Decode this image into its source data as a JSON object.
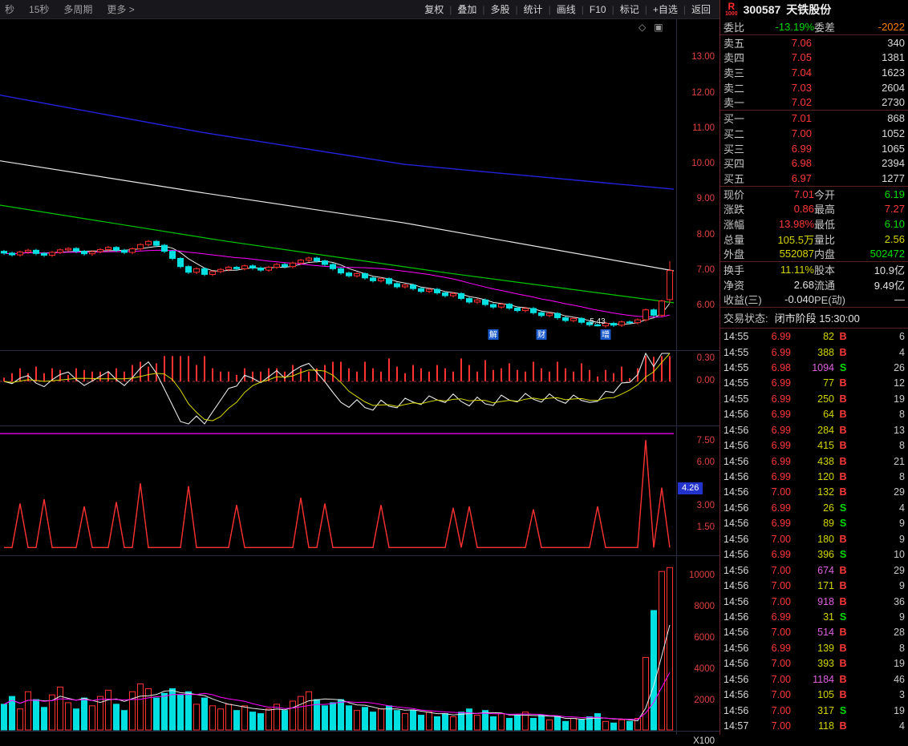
{
  "topbar": {
    "left_items": [
      "秒",
      "15秒",
      "多周期",
      "更多 >"
    ],
    "right_buttons": [
      "复权",
      "叠加",
      "多股",
      "统计",
      "画线",
      "F10",
      "标记",
      "+自选",
      "返回"
    ]
  },
  "stock": {
    "badge": "R",
    "badge_sub": "1000",
    "code": "300587",
    "name": "天铁股份"
  },
  "chart": {
    "closes": [
      7.5,
      7.45,
      7.53,
      7.58,
      7.49,
      7.44,
      7.52,
      7.59,
      7.63,
      7.55,
      7.48,
      7.54,
      7.6,
      7.66,
      7.58,
      7.52,
      7.62,
      7.74,
      7.83,
      7.72,
      7.55,
      7.35,
      7.12,
      6.96,
      7.06,
      6.9,
      6.98,
      7.04,
      7.1,
      7.06,
      7.14,
      7.08,
      7.02,
      7.1,
      7.18,
      7.12,
      7.22,
      7.3,
      7.36,
      7.28,
      7.18,
      7.06,
      6.94,
      6.86,
      6.92,
      6.8,
      6.72,
      6.78,
      6.64,
      6.55,
      6.6,
      6.5,
      6.42,
      6.48,
      6.38,
      6.3,
      6.36,
      6.22,
      6.12,
      6.18,
      6.05,
      5.98,
      6.06,
      5.95,
      5.88,
      5.94,
      5.82,
      5.74,
      5.8,
      5.68,
      5.6,
      5.66,
      5.55,
      5.48,
      5.45,
      5.52,
      5.47,
      5.56,
      5.54,
      5.62,
      5.9,
      5.75,
      6.15,
      7.01
    ],
    "last_bar": {
      "open": 6.19,
      "high": 7.27,
      "low": 6.1,
      "close": 7.01
    },
    "low_marker": {
      "index": 74,
      "text": "5.43"
    },
    "event_markers": [
      {
        "index": 61,
        "label": "解"
      },
      {
        "index": 67,
        "label": "财"
      },
      {
        "index": 75,
        "label": "增"
      }
    ],
    "long_lines": {
      "blue": [
        [
          0,
          11.95
        ],
        [
          0.3,
          10.9
        ],
        [
          0.6,
          10.0
        ],
        [
          1,
          9.3
        ]
      ],
      "white": [
        [
          0,
          10.1
        ],
        [
          0.3,
          9.2
        ],
        [
          0.6,
          8.35
        ],
        [
          1,
          7.0
        ]
      ],
      "green": [
        [
          0,
          8.85
        ],
        [
          0.33,
          7.85
        ],
        [
          0.66,
          6.95
        ],
        [
          1,
          6.1
        ]
      ]
    },
    "volumes": [
      1800,
      2300,
      1500,
      2600,
      2100,
      1600,
      2400,
      2900,
      1900,
      1500,
      2200,
      1700,
      2300,
      2700,
      1800,
      1400,
      2600,
      3100,
      2800,
      2200,
      2500,
      2800,
      2400,
      2600,
      1800,
      2200,
      1700,
      1500,
      1800,
      1400,
      1700,
      1300,
      1200,
      1500,
      1800,
      1400,
      2000,
      2300,
      2600,
      2100,
      1700,
      1900,
      2100,
      1700,
      1400,
      1600,
      1300,
      1500,
      1700,
      1400,
      1200,
      1400,
      1100,
      1300,
      1000,
      1200,
      1000,
      1300,
      1500,
      1100,
      1400,
      1000,
      1200,
      900,
      1100,
      1300,
      900,
      1100,
      800,
      1000,
      700,
      900,
      800,
      1000,
      1200,
      700,
      600,
      800,
      700,
      900,
      4800,
      7800,
      10300,
      10550
    ],
    "panel3": {
      "baseline": 0.15,
      "hline": 8.05,
      "spikes": [
        [
          2,
          3.2
        ],
        [
          5,
          3.5
        ],
        [
          10,
          3.0
        ],
        [
          14,
          3.3
        ],
        [
          17,
          4.6
        ],
        [
          23,
          4.4
        ],
        [
          29,
          3.1
        ],
        [
          37,
          3.6
        ],
        [
          40,
          3.2
        ],
        [
          47,
          3.1
        ],
        [
          56,
          2.9
        ],
        [
          58,
          3.0
        ],
        [
          66,
          2.8
        ],
        [
          74,
          3.0
        ],
        [
          80,
          7.6
        ],
        [
          82,
          4.3
        ]
      ]
    },
    "axis": {
      "main": [
        "13.00",
        "12.00",
        "11.00",
        "10.00",
        "9.00",
        "8.00",
        "7.00",
        "6.00"
      ],
      "panel2": [
        "0.30",
        "0.00"
      ],
      "panel3": [
        "7.50",
        "6.00",
        "3.00",
        "1.50"
      ],
      "panel3_tag": "4.26",
      "panel4": [
        "10000",
        "8000",
        "6000",
        "4000",
        "2000"
      ],
      "panel4_unit": "X100"
    },
    "window_icons": [
      "◇",
      "▣"
    ]
  },
  "order_book": {
    "summary": {
      "l1": "委比",
      "v1": "-13.19%",
      "l2": "委差",
      "v2": "-2022"
    },
    "asks": [
      [
        "卖五",
        "7.06",
        "340"
      ],
      [
        "卖四",
        "7.05",
        "1381"
      ],
      [
        "卖三",
        "7.04",
        "1623"
      ],
      [
        "卖二",
        "7.03",
        "2604"
      ],
      [
        "卖一",
        "7.02",
        "2730"
      ]
    ],
    "bids": [
      [
        "买一",
        "7.01",
        "868"
      ],
      [
        "买二",
        "7.00",
        "1052"
      ],
      [
        "买三",
        "6.99",
        "1065"
      ],
      [
        "买四",
        "6.98",
        "2394"
      ],
      [
        "买五",
        "6.97",
        "1277"
      ]
    ]
  },
  "quote": {
    "rows": [
      {
        "l1": "现价",
        "v1": "7.01",
        "c1": "red",
        "l2": "今开",
        "v2": "6.19",
        "c2": "green"
      },
      {
        "l1": "涨跌",
        "v1": "0.86",
        "c1": "red",
        "l2": "最高",
        "v2": "7.27",
        "c2": "red"
      },
      {
        "l1": "涨幅",
        "v1": "13.98%",
        "c1": "red",
        "l2": "最低",
        "v2": "6.10",
        "c2": "green"
      },
      {
        "l1": "总量",
        "v1": "105.5万",
        "c1": "yellow",
        "l2": "量比",
        "v2": "2.56",
        "c2": "yellow"
      },
      {
        "l1": "外盘",
        "v1": "552087",
        "c1": "yellow",
        "l2": "内盘",
        "v2": "502472",
        "c2": "green"
      }
    ],
    "rows2": [
      {
        "l1": "换手",
        "v1": "11.11%",
        "c1": "yellow",
        "l2": "股本",
        "v2": "10.9亿",
        "c2": "white"
      },
      {
        "l1": "净资",
        "v1": "2.68",
        "c1": "white",
        "l2": "流通",
        "v2": "9.49亿",
        "c2": "white"
      },
      {
        "l1": "收益(三)",
        "v1": "-0.040",
        "c1": "white",
        "l2": "PE(动)",
        "v2": "—",
        "c2": "white"
      }
    ]
  },
  "status": {
    "label": "交易状态:",
    "value": "闭市阶段 15:30:00"
  },
  "ticks": [
    {
      "t": "14:55",
      "p": "6.99",
      "pc": "red",
      "v": "82",
      "vc": "yellow",
      "d": "B",
      "dc": "red",
      "n": "6"
    },
    {
      "t": "14:55",
      "p": "6.99",
      "pc": "red",
      "v": "388",
      "vc": "yellow",
      "d": "B",
      "dc": "red",
      "n": "4"
    },
    {
      "t": "14:55",
      "p": "6.98",
      "pc": "red",
      "v": "1094",
      "vc": "purple",
      "d": "S",
      "dc": "green",
      "n": "26"
    },
    {
      "t": "14:55",
      "p": "6.99",
      "pc": "red",
      "v": "77",
      "vc": "yellow",
      "d": "B",
      "dc": "red",
      "n": "12"
    },
    {
      "t": "14:55",
      "p": "6.99",
      "pc": "red",
      "v": "250",
      "vc": "yellow",
      "d": "B",
      "dc": "red",
      "n": "19"
    },
    {
      "t": "14:56",
      "p": "6.99",
      "pc": "red",
      "v": "64",
      "vc": "yellow",
      "d": "B",
      "dc": "red",
      "n": "8"
    },
    {
      "t": "14:56",
      "p": "6.99",
      "pc": "red",
      "v": "284",
      "vc": "yellow",
      "d": "B",
      "dc": "red",
      "n": "13"
    },
    {
      "t": "14:56",
      "p": "6.99",
      "pc": "red",
      "v": "415",
      "vc": "yellow",
      "d": "B",
      "dc": "red",
      "n": "8"
    },
    {
      "t": "14:56",
      "p": "6.99",
      "pc": "red",
      "v": "438",
      "vc": "yellow",
      "d": "B",
      "dc": "red",
      "n": "21"
    },
    {
      "t": "14:56",
      "p": "6.99",
      "pc": "red",
      "v": "120",
      "vc": "yellow",
      "d": "B",
      "dc": "red",
      "n": "8"
    },
    {
      "t": "14:56",
      "p": "7.00",
      "pc": "red",
      "v": "132",
      "vc": "yellow",
      "d": "B",
      "dc": "red",
      "n": "29"
    },
    {
      "t": "14:56",
      "p": "6.99",
      "pc": "red",
      "v": "26",
      "vc": "yellow",
      "d": "S",
      "dc": "green",
      "n": "4"
    },
    {
      "t": "14:56",
      "p": "6.99",
      "pc": "red",
      "v": "89",
      "vc": "yellow",
      "d": "S",
      "dc": "green",
      "n": "9"
    },
    {
      "t": "14:56",
      "p": "7.00",
      "pc": "red",
      "v": "180",
      "vc": "yellow",
      "d": "B",
      "dc": "red",
      "n": "9"
    },
    {
      "t": "14:56",
      "p": "6.99",
      "pc": "red",
      "v": "396",
      "vc": "yellow",
      "d": "S",
      "dc": "green",
      "n": "10"
    },
    {
      "t": "14:56",
      "p": "7.00",
      "pc": "red",
      "v": "674",
      "vc": "purple",
      "d": "B",
      "dc": "red",
      "n": "29"
    },
    {
      "t": "14:56",
      "p": "7.00",
      "pc": "red",
      "v": "171",
      "vc": "yellow",
      "d": "B",
      "dc": "red",
      "n": "9"
    },
    {
      "t": "14:56",
      "p": "7.00",
      "pc": "red",
      "v": "918",
      "vc": "purple",
      "d": "B",
      "dc": "red",
      "n": "36"
    },
    {
      "t": "14:56",
      "p": "6.99",
      "pc": "red",
      "v": "31",
      "vc": "yellow",
      "d": "S",
      "dc": "green",
      "n": "9"
    },
    {
      "t": "14:56",
      "p": "7.00",
      "pc": "red",
      "v": "514",
      "vc": "purple",
      "d": "B",
      "dc": "red",
      "n": "28"
    },
    {
      "t": "14:56",
      "p": "6.99",
      "pc": "red",
      "v": "139",
      "vc": "yellow",
      "d": "B",
      "dc": "red",
      "n": "8"
    },
    {
      "t": "14:56",
      "p": "7.00",
      "pc": "red",
      "v": "393",
      "vc": "yellow",
      "d": "B",
      "dc": "red",
      "n": "19"
    },
    {
      "t": "14:56",
      "p": "7.00",
      "pc": "red",
      "v": "1184",
      "vc": "purple",
      "d": "B",
      "dc": "red",
      "n": "46"
    },
    {
      "t": "14:56",
      "p": "7.00",
      "pc": "red",
      "v": "105",
      "vc": "yellow",
      "d": "B",
      "dc": "red",
      "n": "3"
    },
    {
      "t": "14:56",
      "p": "7.00",
      "pc": "red",
      "v": "317",
      "vc": "yellow",
      "d": "S",
      "dc": "green",
      "n": "19"
    },
    {
      "t": "14:57",
      "p": "7.00",
      "pc": "red",
      "v": "118",
      "vc": "yellow",
      "d": "B",
      "dc": "red",
      "n": "4"
    }
  ]
}
